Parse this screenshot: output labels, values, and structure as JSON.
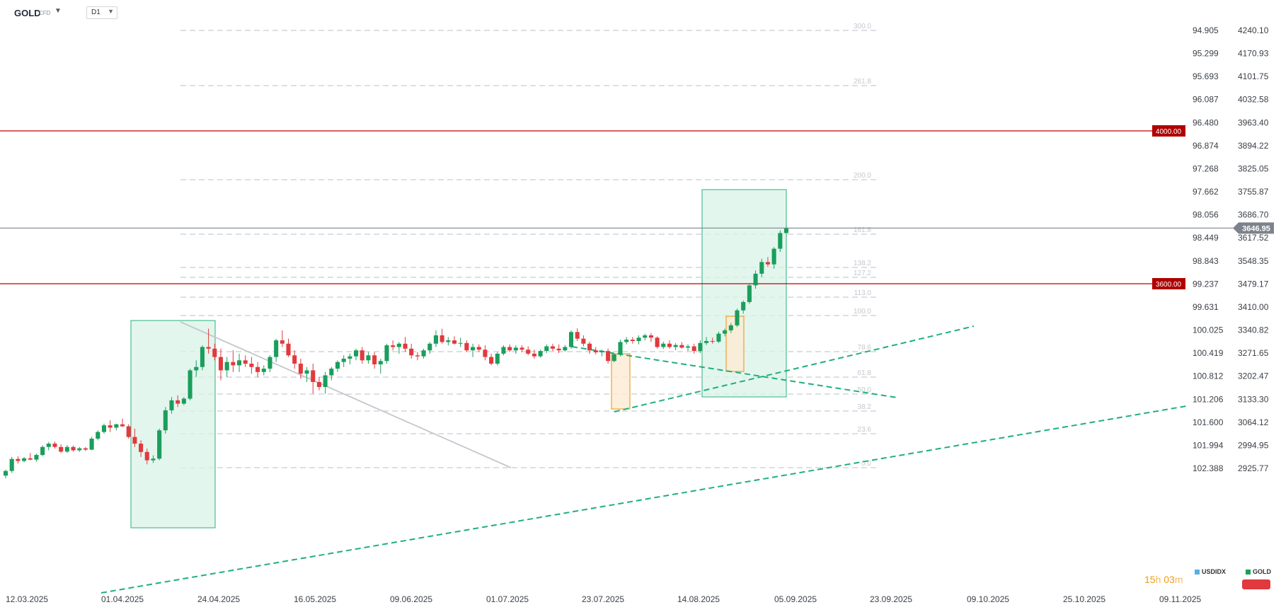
{
  "header": {
    "symbol": "GOLD",
    "symbol_type": "CFD",
    "timeframe": "D1"
  },
  "countdown": {
    "hours": "15",
    "h": "h",
    "minutes": "03",
    "m": "m"
  },
  "legend": [
    {
      "name": "USDIDX",
      "color": "#5aaee0"
    },
    {
      "name": "GOLD",
      "color": "#1a9e5c"
    }
  ],
  "colors": {
    "up": "#1a9e5c",
    "down": "#e03a3e",
    "level_line": "#c00000",
    "current_price_line": "#8a9099",
    "fib": "#c8ccd3",
    "trend": "#1fb07a",
    "box_fill": "#d9f3e8",
    "box_stroke": "#2bb07c",
    "orange": "#f0a030",
    "gray_trend": "#c4c7cc"
  },
  "chart_data": {
    "type": "candlestick",
    "symbol": "GOLD",
    "timeframe": "D1",
    "x_axis_labels": [
      "12.03.2025",
      "01.04.2025",
      "24.04.2025",
      "16.05.2025",
      "09.06.2025",
      "01.07.2025",
      "23.07.2025",
      "14.08.2025",
      "05.09.2025",
      "23.09.2025",
      "09.10.2025",
      "25.10.2025",
      "09.11.2025"
    ],
    "y_axis_gold": [
      4240.1,
      4170.93,
      4101.75,
      4032.58,
      3963.4,
      3894.22,
      3825.05,
      3755.87,
      3686.7,
      3617.52,
      3548.35,
      3479.17,
      3410.0,
      3340.82,
      3271.65,
      3202.47,
      3133.3,
      3064.12,
      2994.95,
      2925.77
    ],
    "y_axis_usdidx": [
      "94.905",
      "95.299",
      "95.693",
      "96.087",
      "96.480",
      "96.874",
      "97.268",
      "97.662",
      "98.056",
      "98.449",
      "98.843",
      "99.237",
      "99.631",
      "100.025",
      "100.419",
      "100.812",
      "101.206",
      "101.600",
      "101.994",
      "102.388"
    ],
    "ylim": [
      2885,
      4290
    ],
    "current_price": "3646.95",
    "horizontal_levels": [
      "4000.00",
      "3600.00"
    ],
    "fibonacci_levels": [
      "300.0",
      "261.8",
      "200.0",
      "161.8",
      "138.2",
      "127.2",
      "113.0",
      "100.0",
      "78.6",
      "61.8",
      "50.0",
      "38.2",
      "23.6",
      "0.0"
    ],
    "ohlc": [
      [
        2904,
        2922,
        2896,
        2918
      ],
      [
        2918,
        2960,
        2912,
        2954
      ],
      [
        2954,
        2962,
        2940,
        2948
      ],
      [
        2948,
        2960,
        2944,
        2956
      ],
      [
        2956,
        2972,
        2950,
        2952
      ],
      [
        2952,
        2970,
        2946,
        2966
      ],
      [
        2966,
        2995,
        2962,
        2990
      ],
      [
        2990,
        3005,
        2980,
        3000
      ],
      [
        3000,
        3006,
        2985,
        2990
      ],
      [
        2990,
        2998,
        2972,
        2976
      ],
      [
        2976,
        2996,
        2972,
        2990
      ],
      [
        2990,
        2994,
        2976,
        2980
      ],
      [
        2980,
        2990,
        2975,
        2986
      ],
      [
        2986,
        2990,
        2978,
        2982
      ],
      [
        2982,
        3020,
        2980,
        3015
      ],
      [
        3015,
        3040,
        3010,
        3035
      ],
      [
        3035,
        3060,
        3030,
        3055
      ],
      [
        3055,
        3070,
        3035,
        3048
      ],
      [
        3048,
        3060,
        3040,
        3058
      ],
      [
        3058,
        3075,
        3050,
        3052
      ],
      [
        3052,
        3058,
        3015,
        3020
      ],
      [
        3020,
        3045,
        2990,
        3000
      ],
      [
        3000,
        3010,
        2960,
        2975
      ],
      [
        2975,
        2985,
        2938,
        2950
      ],
      [
        2950,
        2965,
        2942,
        2955
      ],
      [
        2955,
        3045,
        2950,
        3040
      ],
      [
        3040,
        3110,
        3030,
        3100
      ],
      [
        3100,
        3140,
        3090,
        3130
      ],
      [
        3130,
        3145,
        3110,
        3120
      ],
      [
        3120,
        3140,
        3115,
        3135
      ],
      [
        3135,
        3225,
        3130,
        3220
      ],
      [
        3220,
        3250,
        3200,
        3230
      ],
      [
        3230,
        3295,
        3220,
        3290
      ],
      [
        3290,
        3345,
        3270,
        3285
      ],
      [
        3285,
        3300,
        3250,
        3260
      ],
      [
        3260,
        3285,
        3190,
        3220
      ],
      [
        3220,
        3260,
        3200,
        3245
      ],
      [
        3245,
        3280,
        3215,
        3235
      ],
      [
        3235,
        3270,
        3215,
        3250
      ],
      [
        3250,
        3265,
        3230,
        3240
      ],
      [
        3240,
        3260,
        3210,
        3230
      ],
      [
        3230,
        3245,
        3200,
        3215
      ],
      [
        3215,
        3235,
        3205,
        3225
      ],
      [
        3225,
        3265,
        3215,
        3260
      ],
      [
        3260,
        3315,
        3245,
        3310
      ],
      [
        3310,
        3340,
        3290,
        3300
      ],
      [
        3300,
        3315,
        3260,
        3265
      ],
      [
        3265,
        3280,
        3225,
        3240
      ],
      [
        3240,
        3255,
        3195,
        3210
      ],
      [
        3210,
        3230,
        3185,
        3220
      ],
      [
        3220,
        3240,
        3150,
        3185
      ],
      [
        3185,
        3200,
        3160,
        3170
      ],
      [
        3170,
        3215,
        3150,
        3205
      ],
      [
        3205,
        3230,
        3190,
        3225
      ],
      [
        3225,
        3250,
        3215,
        3245
      ],
      [
        3245,
        3265,
        3230,
        3255
      ],
      [
        3255,
        3270,
        3238,
        3262
      ],
      [
        3262,
        3285,
        3250,
        3280
      ],
      [
        3280,
        3290,
        3240,
        3250
      ],
      [
        3250,
        3275,
        3240,
        3265
      ],
      [
        3265,
        3275,
        3225,
        3238
      ],
      [
        3238,
        3255,
        3210,
        3248
      ],
      [
        3248,
        3300,
        3240,
        3295
      ],
      [
        3295,
        3310,
        3280,
        3290
      ],
      [
        3290,
        3305,
        3270,
        3300
      ],
      [
        3300,
        3320,
        3275,
        3285
      ],
      [
        3285,
        3300,
        3255,
        3265
      ],
      [
        3265,
        3275,
        3250,
        3262
      ],
      [
        3262,
        3285,
        3255,
        3280
      ],
      [
        3280,
        3305,
        3270,
        3300
      ],
      [
        3300,
        3340,
        3290,
        3325
      ],
      [
        3325,
        3345,
        3300,
        3305
      ],
      [
        3305,
        3320,
        3295,
        3310
      ],
      [
        3310,
        3322,
        3298,
        3300
      ],
      [
        3300,
        3318,
        3290,
        3302
      ],
      [
        3302,
        3310,
        3275,
        3280
      ],
      [
        3280,
        3300,
        3260,
        3290
      ],
      [
        3290,
        3298,
        3275,
        3282
      ],
      [
        3282,
        3295,
        3250,
        3260
      ],
      [
        3260,
        3270,
        3235,
        3240
      ],
      [
        3240,
        3275,
        3235,
        3270
      ],
      [
        3270,
        3295,
        3265,
        3290
      ],
      [
        3290,
        3298,
        3275,
        3280
      ],
      [
        3280,
        3295,
        3270,
        3288
      ],
      [
        3288,
        3295,
        3275,
        3282
      ],
      [
        3282,
        3292,
        3265,
        3270
      ],
      [
        3270,
        3282,
        3255,
        3262
      ],
      [
        3262,
        3282,
        3258,
        3278
      ],
      [
        3278,
        3298,
        3272,
        3292
      ],
      [
        3292,
        3300,
        3278,
        3285
      ],
      [
        3285,
        3298,
        3272,
        3280
      ],
      [
        3280,
        3296,
        3276,
        3290
      ],
      [
        3290,
        3340,
        3285,
        3335
      ],
      [
        3335,
        3346,
        3308,
        3315
      ],
      [
        3315,
        3325,
        3292,
        3300
      ],
      [
        3300,
        3306,
        3270,
        3280
      ],
      [
        3280,
        3290,
        3268,
        3274
      ],
      [
        3274,
        3282,
        3262,
        3278
      ],
      [
        3278,
        3285,
        3240,
        3248
      ],
      [
        3248,
        3272,
        3244,
        3268
      ],
      [
        3268,
        3312,
        3262,
        3305
      ],
      [
        3305,
        3320,
        3298,
        3312
      ],
      [
        3312,
        3320,
        3300,
        3308
      ],
      [
        3308,
        3325,
        3298,
        3318
      ],
      [
        3318,
        3330,
        3310,
        3325
      ],
      [
        3325,
        3332,
        3305,
        3318
      ],
      [
        3318,
        3322,
        3285,
        3290
      ],
      [
        3290,
        3306,
        3284,
        3300
      ],
      [
        3300,
        3310,
        3285,
        3290
      ],
      [
        3290,
        3302,
        3280,
        3296
      ],
      [
        3296,
        3305,
        3285,
        3288
      ],
      [
        3288,
        3298,
        3278,
        3292
      ],
      [
        3292,
        3300,
        3270,
        3278
      ],
      [
        3278,
        3310,
        3272,
        3302
      ],
      [
        3302,
        3320,
        3296,
        3308
      ],
      [
        3308,
        3318,
        3300,
        3306
      ],
      [
        3306,
        3336,
        3302,
        3330
      ],
      [
        3330,
        3345,
        3322,
        3340
      ],
      [
        3340,
        3362,
        3332,
        3355
      ],
      [
        3355,
        3405,
        3350,
        3400
      ],
      [
        3400,
        3430,
        3390,
        3425
      ],
      [
        3425,
        3480,
        3420,
        3475
      ],
      [
        3475,
        3520,
        3465,
        3510
      ],
      [
        3510,
        3555,
        3500,
        3545
      ],
      [
        3545,
        3560,
        3530,
        3538
      ],
      [
        3538,
        3590,
        3525,
        3585
      ],
      [
        3585,
        3640,
        3575,
        3632
      ],
      [
        3632,
        3655,
        3625,
        3646
      ]
    ]
  }
}
